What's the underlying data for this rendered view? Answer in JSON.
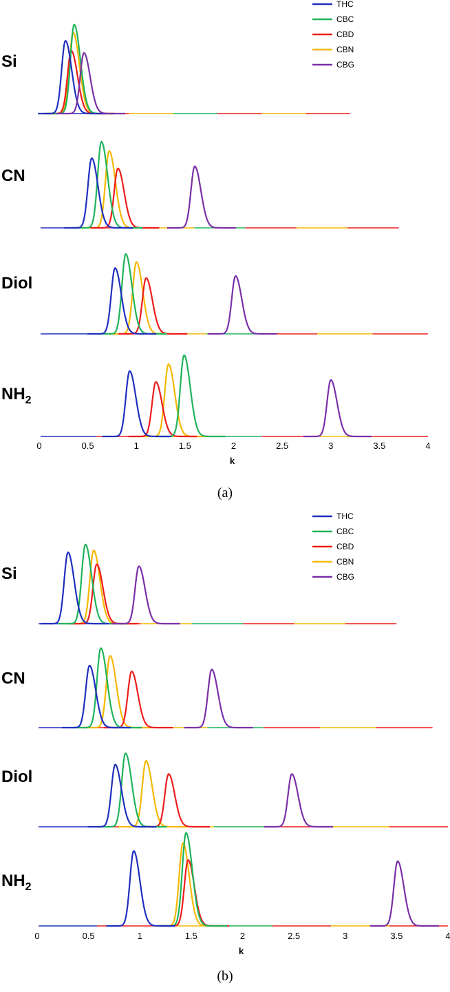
{
  "colors": {
    "THC": "#1f2fbf",
    "CBC": "#1fb35a",
    "CBD": "#ee1c1c",
    "CBN": "#f5b800",
    "CBG": "#7a2fa8"
  },
  "legend": [
    "THC",
    "CBC",
    "CBD",
    "CBN",
    "CBG"
  ],
  "chart_data": [
    {
      "type": "line",
      "caption": "(a)",
      "xlabel": "k",
      "xlim": [
        0,
        4
      ],
      "xticks": [
        "0",
        "0.5",
        "1",
        "1.5",
        "2",
        "2.5",
        "3",
        "3.5",
        "4"
      ],
      "panels": [
        {
          "label": "Si",
          "label_sub": "",
          "trace_end": 3.2,
          "peaks": {
            "THC": {
              "k": 0.27,
              "h": 0.72
            },
            "CBC": {
              "k": 0.36,
              "h": 0.88
            },
            "CBD": {
              "k": 0.33,
              "h": 0.62
            },
            "CBN": {
              "k": 0.35,
              "h": 0.8
            },
            "CBG": {
              "k": 0.46,
              "h": 0.6
            }
          }
        },
        {
          "label": "CN",
          "label_sub": "",
          "trace_end": 3.7,
          "peaks": {
            "THC": {
              "k": 0.54,
              "h": 0.68
            },
            "CBC": {
              "k": 0.64,
              "h": 0.84
            },
            "CBD": {
              "k": 0.81,
              "h": 0.58
            },
            "CBN": {
              "k": 0.72,
              "h": 0.75
            },
            "CBG": {
              "k": 1.6,
              "h": 0.6
            }
          }
        },
        {
          "label": "Diol",
          "label_sub": "",
          "trace_end": 4.0,
          "peaks": {
            "THC": {
              "k": 0.78,
              "h": 0.66
            },
            "CBC": {
              "k": 0.89,
              "h": 0.8
            },
            "CBD": {
              "k": 1.1,
              "h": 0.56
            },
            "CBN": {
              "k": 1.0,
              "h": 0.72
            },
            "CBG": {
              "k": 2.02,
              "h": 0.58
            }
          }
        },
        {
          "label": "NH",
          "label_sub": "2",
          "trace_end": 4.0,
          "peaks": {
            "THC": {
              "k": 0.93,
              "h": 0.66
            },
            "CBC": {
              "k": 1.49,
              "h": 0.82
            },
            "CBD": {
              "k": 1.2,
              "h": 0.55
            },
            "CBN": {
              "k": 1.33,
              "h": 0.73
            },
            "CBG": {
              "k": 3.0,
              "h": 0.57
            }
          }
        }
      ]
    },
    {
      "type": "line",
      "caption": "(b)",
      "xlabel": "k",
      "xlim": [
        0,
        4
      ],
      "xticks": [
        "0",
        "0.5",
        "1",
        "1.5",
        "2",
        "2.5",
        "3",
        "3.5",
        "4"
      ],
      "panels": [
        {
          "label": "Si",
          "label_sub": "",
          "trace_end": 3.5,
          "peaks": {
            "THC": {
              "k": 0.3,
              "h": 0.72
            },
            "CBC": {
              "k": 0.47,
              "h": 0.8
            },
            "CBD": {
              "k": 0.58,
              "h": 0.6
            },
            "CBN": {
              "k": 0.55,
              "h": 0.74
            },
            "CBG": {
              "k": 0.99,
              "h": 0.58
            }
          }
        },
        {
          "label": "CN",
          "label_sub": "",
          "trace_end": 3.85,
          "peaks": {
            "THC": {
              "k": 0.51,
              "h": 0.64
            },
            "CBC": {
              "k": 0.62,
              "h": 0.82
            },
            "CBD": {
              "k": 0.92,
              "h": 0.58
            },
            "CBN": {
              "k": 0.71,
              "h": 0.74
            },
            "CBG": {
              "k": 1.7,
              "h": 0.6
            }
          }
        },
        {
          "label": "Diol",
          "label_sub": "",
          "trace_end": 4.0,
          "peaks": {
            "THC": {
              "k": 0.76,
              "h": 0.66
            },
            "CBC": {
              "k": 0.86,
              "h": 0.78
            },
            "CBD": {
              "k": 1.28,
              "h": 0.56
            },
            "CBN": {
              "k": 1.06,
              "h": 0.7
            },
            "CBG": {
              "k": 2.48,
              "h": 0.56
            }
          }
        },
        {
          "label": "NH",
          "label_sub": "2",
          "trace_end": 4.0,
          "peaks": {
            "THC": {
              "k": 0.94,
              "h": 0.66
            },
            "CBC": {
              "k": 1.45,
              "h": 0.82
            },
            "CBD": {
              "k": 1.47,
              "h": 0.58
            },
            "CBN": {
              "k": 1.42,
              "h": 0.73
            },
            "CBG": {
              "k": 3.51,
              "h": 0.57
            }
          }
        }
      ]
    }
  ]
}
